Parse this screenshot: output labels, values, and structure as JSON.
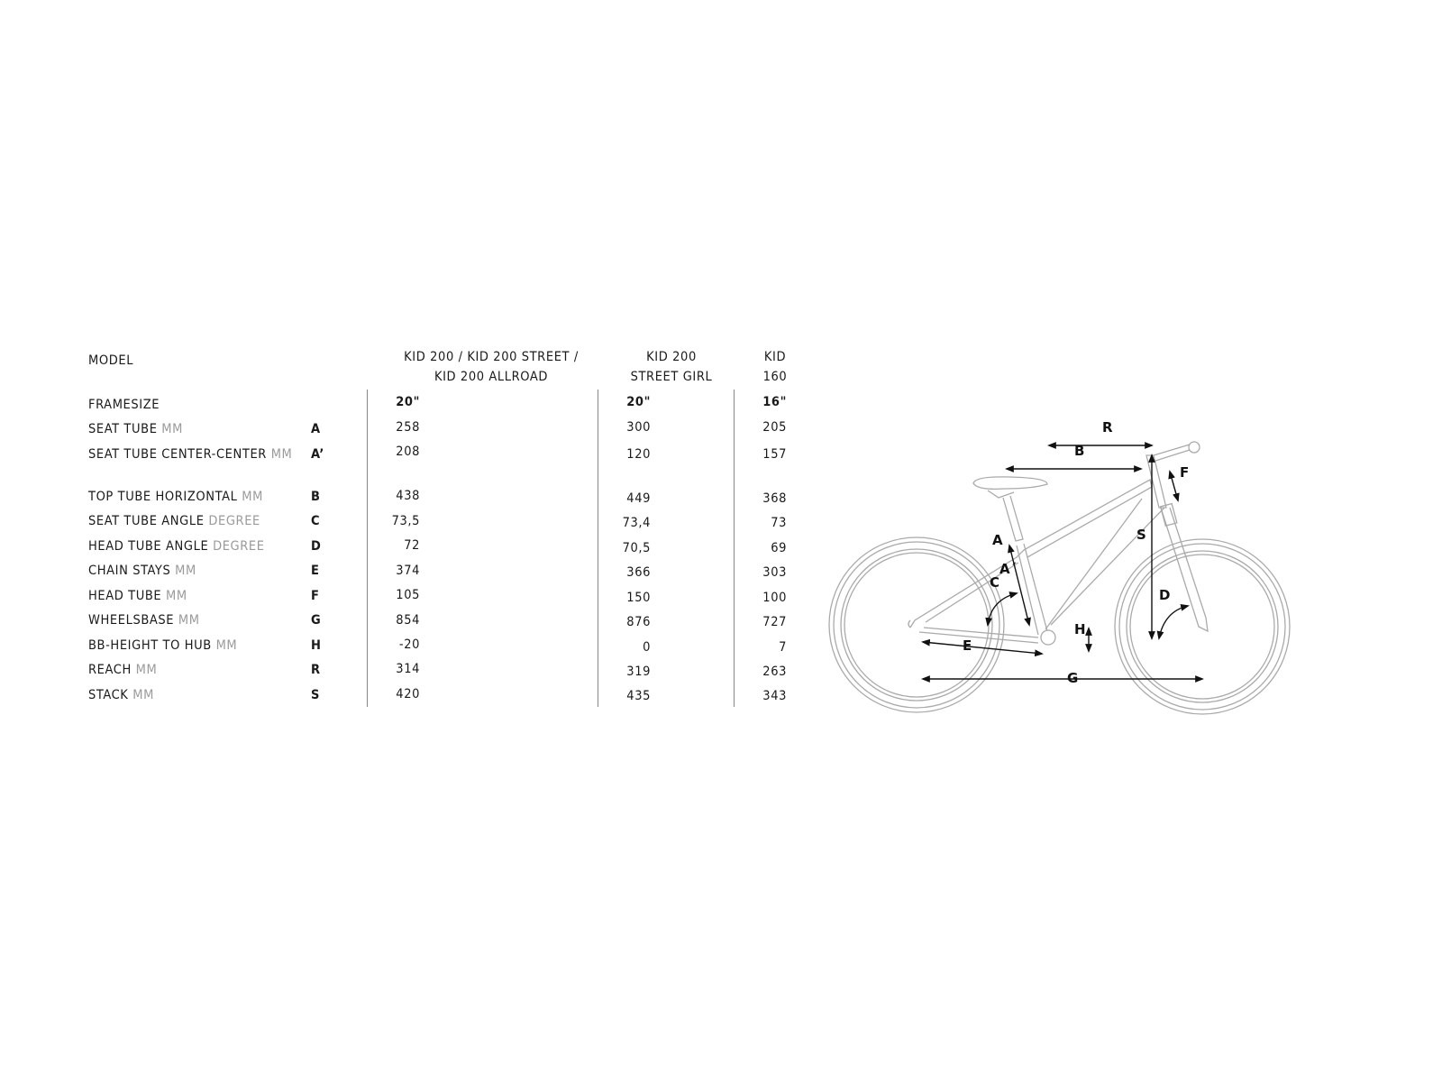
{
  "table": {
    "model_label": "MODEL",
    "columns": [
      {
        "line1": "KID 200 / KID 200 STREET /",
        "line2": "KID 200 ALLROAD"
      },
      {
        "line1": "KID 200",
        "line2": "STREET GIRL"
      },
      {
        "line1": "KID",
        "line2": "160"
      }
    ],
    "framesize": {
      "label": "FRAMESIZE",
      "values": [
        "20\"",
        "20\"",
        "16\""
      ]
    },
    "rows": [
      {
        "label": "SEAT TUBE",
        "unit": "MM",
        "letter": "A",
        "values": [
          "258",
          "300",
          "205"
        ]
      },
      {
        "label": "SEAT TUBE CENTER-CENTER",
        "unit": "MM",
        "letter": "A’",
        "values": [
          "208",
          "120",
          "157"
        ]
      },
      {
        "label": "TOP TUBE HORIZONTAL",
        "unit": "MM",
        "letter": "B",
        "values": [
          "438",
          "449",
          "368"
        ]
      },
      {
        "label": "SEAT TUBE ANGLE",
        "unit": "DEGREE",
        "letter": "C",
        "values": [
          "73,5",
          "73,4",
          "73"
        ]
      },
      {
        "label": "HEAD TUBE ANGLE",
        "unit": "DEGREE",
        "letter": "D",
        "values": [
          "72",
          "70,5",
          "69"
        ]
      },
      {
        "label": "CHAIN STAYS",
        "unit": "MM",
        "letter": "E",
        "values": [
          "374",
          "366",
          "303"
        ]
      },
      {
        "label": "HEAD TUBE",
        "unit": "MM",
        "letter": "F",
        "values": [
          "105",
          "150",
          "100"
        ]
      },
      {
        "label": "WHEELSBASE",
        "unit": "MM",
        "letter": "G",
        "values": [
          "854",
          "876",
          "727"
        ]
      },
      {
        "label": "BB-HEIGHT TO HUB",
        "unit": "MM",
        "letter": "H",
        "values": [
          "-20",
          "0",
          "7"
        ]
      },
      {
        "label": "REACH",
        "unit": "MM",
        "letter": "R",
        "values": [
          "314",
          "319",
          "263"
        ]
      },
      {
        "label": "STACK",
        "unit": "MM",
        "letter": "S",
        "values": [
          "420",
          "435",
          "343"
        ]
      }
    ]
  },
  "diagram": {
    "labels": {
      "R": "R",
      "B": "B",
      "F": "F",
      "S": "S",
      "A": "A",
      "A2": "A´",
      "C": "C",
      "D": "D",
      "H": "H",
      "E": "E",
      "G": "G"
    },
    "line_color": "#aaaaaa",
    "arrow_color": "#111111"
  }
}
